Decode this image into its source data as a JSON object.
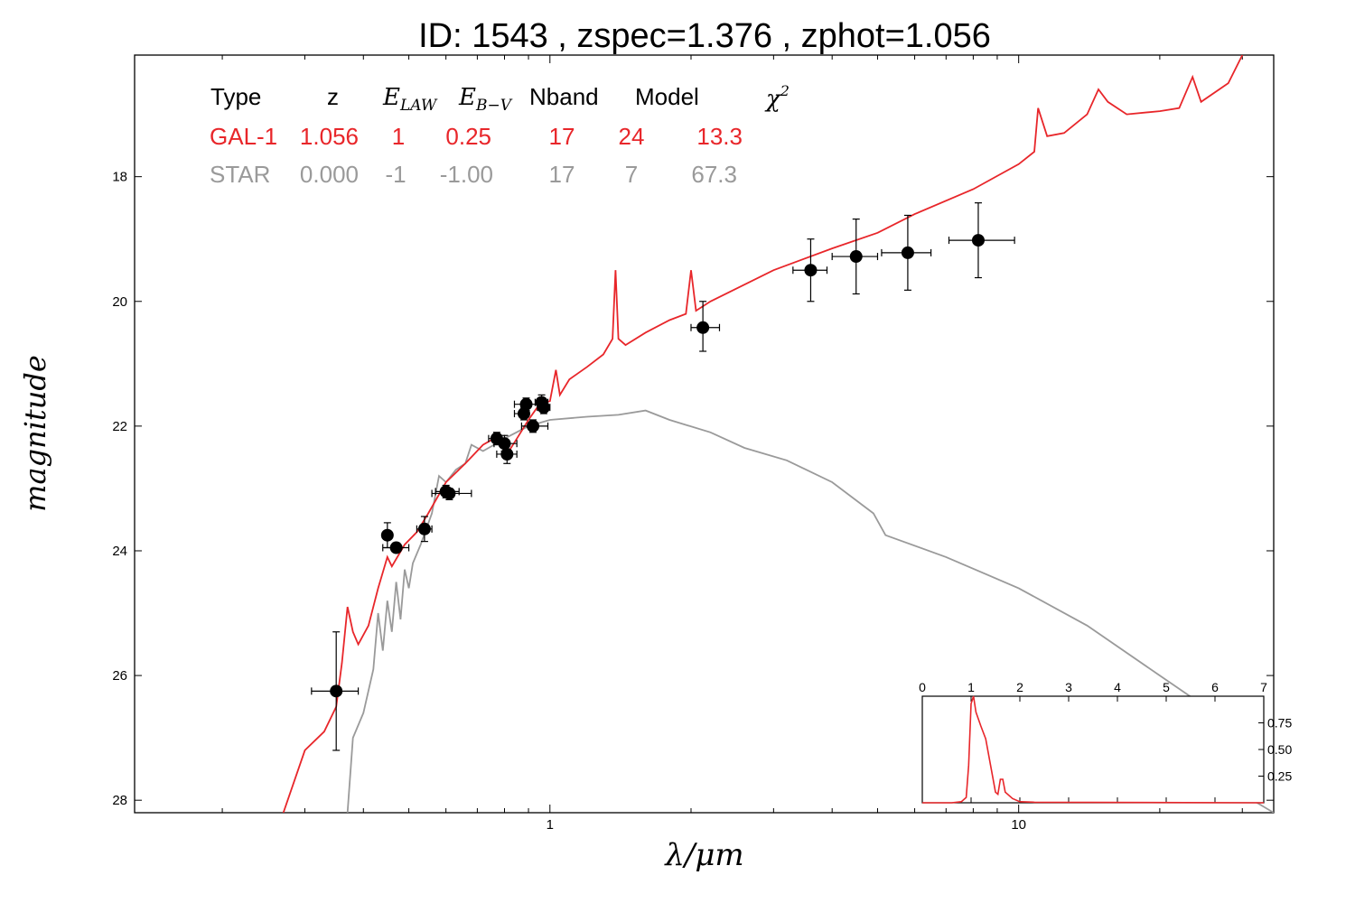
{
  "chart_data": {
    "type": "scatter",
    "title": "ID:  1543  , zspec=1.376 , zphot=1.056",
    "xlabel": "λ/μm",
    "ylabel": "magnitude",
    "x_scale": "log",
    "xlim": [
      0.13,
      35
    ],
    "ylim": [
      28.2,
      16.05
    ],
    "x_tick_labels": [
      "1",
      "10"
    ],
    "y_tick_labels": [
      "18",
      "20",
      "22",
      "24",
      "26",
      "28"
    ],
    "grid": false,
    "table": {
      "headers": [
        "Type",
        "z",
        "E_LAW",
        "E_B−V",
        "Nband",
        "Model",
        "χ2"
      ],
      "header_display": {
        "type": "Type",
        "z": "z",
        "elaw_main": "E",
        "elaw_sub": "LAW",
        "ebv_main": "E",
        "ebv_sub": "B−V",
        "nband": "Nband",
        "model": "Model",
        "chi_main": "χ",
        "chi_sup": "2"
      },
      "rows": [
        {
          "type": "GAL-1",
          "z": "1.056",
          "elaw": "1",
          "ebv": "0.25",
          "nband": "17",
          "model": "24",
          "chi2": "13.3",
          "color": "#e8262a"
        },
        {
          "type": "STAR",
          "z": "0.000",
          "elaw": "-1",
          "ebv": "-1.00",
          "nband": "17",
          "model": "7",
          "chi2": "67.3",
          "color": "#9a9a9a"
        }
      ]
    },
    "observed_points": [
      {
        "x": 0.35,
        "y": 26.25,
        "xerr": [
          0.31,
          0.39
        ],
        "yerr": [
          25.3,
          27.2
        ]
      },
      {
        "x": 0.45,
        "y": 23.75,
        "xerr": [
          0.44,
          0.46
        ],
        "yerr": [
          23.55,
          23.95
        ]
      },
      {
        "x": 0.47,
        "y": 23.95,
        "xerr": [
          0.44,
          0.5
        ],
        "yerr": [
          23.9,
          24.0
        ]
      },
      {
        "x": 0.54,
        "y": 23.65,
        "xerr": [
          0.52,
          0.56
        ],
        "yerr": [
          23.45,
          23.85
        ]
      },
      {
        "x": 0.6,
        "y": 23.05,
        "xerr": [
          0.57,
          0.64
        ],
        "yerr": [
          22.95,
          23.15
        ]
      },
      {
        "x": 0.61,
        "y": 23.08,
        "xerr": [
          0.56,
          0.68
        ],
        "yerr": [
          23.0,
          23.18
        ]
      },
      {
        "x": 0.77,
        "y": 22.2,
        "xerr": [
          0.74,
          0.8
        ],
        "yerr": [
          22.1,
          22.3
        ]
      },
      {
        "x": 0.8,
        "y": 22.28,
        "xerr": [
          0.76,
          0.85
        ],
        "yerr": [
          22.15,
          22.4
        ]
      },
      {
        "x": 0.81,
        "y": 22.45,
        "xerr": [
          0.77,
          0.85
        ],
        "yerr": [
          22.3,
          22.6
        ]
      },
      {
        "x": 0.88,
        "y": 21.8,
        "xerr": [
          0.84,
          0.9
        ],
        "yerr": [
          21.7,
          21.9
        ]
      },
      {
        "x": 0.89,
        "y": 21.65,
        "xerr": [
          0.84,
          0.94
        ],
        "yerr": [
          21.55,
          21.75
        ]
      },
      {
        "x": 0.92,
        "y": 22.0,
        "xerr": [
          0.87,
          0.99
        ],
        "yerr": [
          21.9,
          22.1
        ]
      },
      {
        "x": 0.96,
        "y": 21.62,
        "xerr": [
          0.93,
          0.99
        ],
        "yerr": [
          21.5,
          21.75
        ]
      },
      {
        "x": 0.97,
        "y": 21.7,
        "xerr": [
          0.94,
          1.0
        ],
        "yerr": [
          21.6,
          21.8
        ]
      },
      {
        "x": 2.12,
        "y": 20.42,
        "xerr": [
          2.0,
          2.3
        ],
        "yerr": [
          20.0,
          20.8
        ]
      },
      {
        "x": 3.6,
        "y": 19.5,
        "xerr": [
          3.3,
          3.9
        ],
        "yerr": [
          19.0,
          20.0
        ]
      },
      {
        "x": 4.5,
        "y": 19.28,
        "xerr": [
          4.0,
          5.0
        ],
        "yerr": [
          18.68,
          19.88
        ]
      },
      {
        "x": 5.8,
        "y": 19.22,
        "xerr": [
          5.1,
          6.5
        ],
        "yerr": [
          18.62,
          19.82
        ]
      },
      {
        "x": 8.2,
        "y": 19.02,
        "xerr": [
          7.1,
          9.8
        ],
        "yerr": [
          18.42,
          19.62
        ]
      }
    ],
    "galaxy_model_curve": [
      [
        0.27,
        28.2
      ],
      [
        0.3,
        27.2
      ],
      [
        0.33,
        26.9
      ],
      [
        0.35,
        26.5
      ],
      [
        0.36,
        25.8
      ],
      [
        0.37,
        24.9
      ],
      [
        0.38,
        25.3
      ],
      [
        0.39,
        25.5
      ],
      [
        0.41,
        25.2
      ],
      [
        0.43,
        24.6
      ],
      [
        0.45,
        24.1
      ],
      [
        0.46,
        24.25
      ],
      [
        0.49,
        23.9
      ],
      [
        0.52,
        23.7
      ],
      [
        0.55,
        23.4
      ],
      [
        0.6,
        22.9
      ],
      [
        0.66,
        22.6
      ],
      [
        0.72,
        22.3
      ],
      [
        0.78,
        22.15
      ],
      [
        0.81,
        22.45
      ],
      [
        0.85,
        22.2
      ],
      [
        0.9,
        21.9
      ],
      [
        0.95,
        21.65
      ],
      [
        1.0,
        21.6
      ],
      [
        1.03,
        21.1
      ],
      [
        1.05,
        21.5
      ],
      [
        1.1,
        21.25
      ],
      [
        1.2,
        21.05
      ],
      [
        1.3,
        20.85
      ],
      [
        1.36,
        20.6
      ],
      [
        1.38,
        19.5
      ],
      [
        1.4,
        20.6
      ],
      [
        1.45,
        20.7
      ],
      [
        1.6,
        20.5
      ],
      [
        1.8,
        20.3
      ],
      [
        1.95,
        20.2
      ],
      [
        2.0,
        19.5
      ],
      [
        2.05,
        20.15
      ],
      [
        2.2,
        20.0
      ],
      [
        3.0,
        19.5
      ],
      [
        4.0,
        19.15
      ],
      [
        5.0,
        18.9
      ],
      [
        6.0,
        18.6
      ],
      [
        8.0,
        18.2
      ],
      [
        10.0,
        17.8
      ],
      [
        10.8,
        17.6
      ],
      [
        11.0,
        16.9
      ],
      [
        11.5,
        17.35
      ],
      [
        12.5,
        17.3
      ],
      [
        14.0,
        17.0
      ],
      [
        14.8,
        16.6
      ],
      [
        15.5,
        16.8
      ],
      [
        17.0,
        17.0
      ],
      [
        20.0,
        16.95
      ],
      [
        22.0,
        16.9
      ],
      [
        23.5,
        16.4
      ],
      [
        24.5,
        16.8
      ],
      [
        28.0,
        16.5
      ],
      [
        30.0,
        16.05
      ]
    ],
    "star_model_curve": [
      [
        0.37,
        28.2
      ],
      [
        0.38,
        27.0
      ],
      [
        0.4,
        26.6
      ],
      [
        0.42,
        25.9
      ],
      [
        0.43,
        25.0
      ],
      [
        0.44,
        25.6
      ],
      [
        0.45,
        24.8
      ],
      [
        0.46,
        25.3
      ],
      [
        0.47,
        24.5
      ],
      [
        0.48,
        25.1
      ],
      [
        0.49,
        24.3
      ],
      [
        0.5,
        24.6
      ],
      [
        0.51,
        24.2
      ],
      [
        0.53,
        23.9
      ],
      [
        0.56,
        23.4
      ],
      [
        0.58,
        22.8
      ],
      [
        0.6,
        22.9
      ],
      [
        0.63,
        22.7
      ],
      [
        0.66,
        22.6
      ],
      [
        0.68,
        22.3
      ],
      [
        0.72,
        22.4
      ],
      [
        0.76,
        22.3
      ],
      [
        0.8,
        22.2
      ],
      [
        0.9,
        22.0
      ],
      [
        1.0,
        21.9
      ],
      [
        1.2,
        21.85
      ],
      [
        1.4,
        21.82
      ],
      [
        1.6,
        21.75
      ],
      [
        1.8,
        21.9
      ],
      [
        2.2,
        22.1
      ],
      [
        2.6,
        22.35
      ],
      [
        3.2,
        22.55
      ],
      [
        4.0,
        22.9
      ],
      [
        4.9,
        23.4
      ],
      [
        5.2,
        23.75
      ],
      [
        7.0,
        24.1
      ],
      [
        10.0,
        24.6
      ],
      [
        14.0,
        25.2
      ],
      [
        20.0,
        26.0
      ],
      [
        25.0,
        26.5
      ],
      [
        30.0,
        27.9
      ],
      [
        35.0,
        28.2
      ]
    ],
    "inset": {
      "title": "",
      "x_tick_labels": [
        "0",
        "1",
        "2",
        "3",
        "4",
        "5",
        "6",
        "7"
      ],
      "y_tick_labels": [
        "0.25",
        "0.50",
        "0.75"
      ],
      "xlim": [
        0,
        7
      ],
      "ylim": [
        0,
        1.0
      ],
      "pdz_curve": [
        [
          0.0,
          0.0
        ],
        [
          0.6,
          0.0
        ],
        [
          0.8,
          0.01
        ],
        [
          0.9,
          0.05
        ],
        [
          0.95,
          0.35
        ],
        [
          1.0,
          0.93
        ],
        [
          1.05,
          1.0
        ],
        [
          1.1,
          0.85
        ],
        [
          1.2,
          0.72
        ],
        [
          1.3,
          0.6
        ],
        [
          1.4,
          0.35
        ],
        [
          1.5,
          0.1
        ],
        [
          1.55,
          0.08
        ],
        [
          1.6,
          0.22
        ],
        [
          1.65,
          0.22
        ],
        [
          1.7,
          0.1
        ],
        [
          1.85,
          0.04
        ],
        [
          2.0,
          0.01
        ],
        [
          2.3,
          0.005
        ],
        [
          7.0,
          0.0
        ]
      ]
    },
    "colors": {
      "galaxy": "#e8262a",
      "star": "#9a9a9a",
      "points": "#000000"
    }
  }
}
